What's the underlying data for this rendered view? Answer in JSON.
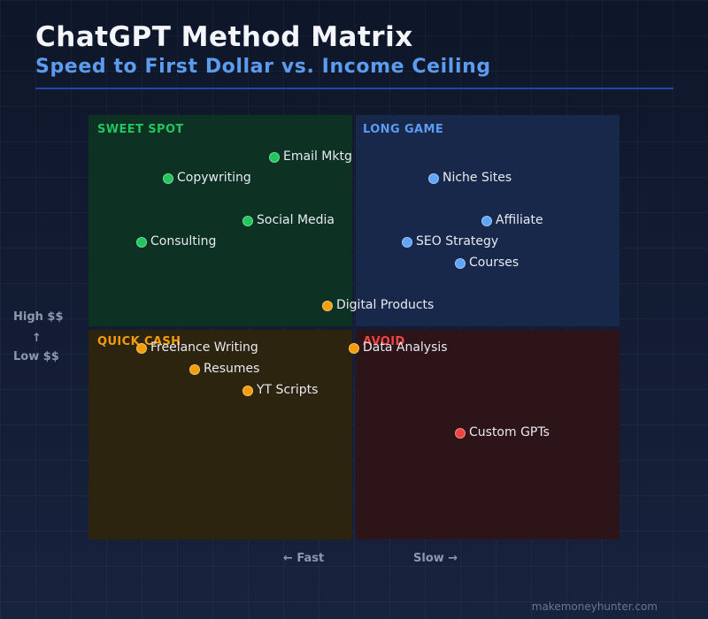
{
  "header": {
    "title": "ChatGPT Method Matrix",
    "subtitle": "Speed to First Dollar vs. Income Ceiling"
  },
  "chart_data": {
    "type": "scatter",
    "title": "ChatGPT Method Matrix",
    "subtitle": "Speed to First Dollar vs. Income Ceiling",
    "x_axis": {
      "low_label": "← Fast",
      "high_label": "Slow →",
      "range": [
        0,
        10
      ]
    },
    "y_axis": {
      "high_label": "High $$",
      "arrow": "↑",
      "low_label": "Low $$",
      "range": [
        0,
        10
      ]
    },
    "grid": true,
    "quadrants": [
      {
        "key": "sweet",
        "label": "SWEET SPOT",
        "position": "top-left",
        "fill": "#0d3123",
        "label_color": "#22c55e"
      },
      {
        "key": "long",
        "label": "LONG GAME",
        "position": "top-right",
        "fill": "#17284a",
        "label_color": "#5b9cf2"
      },
      {
        "key": "quick",
        "label": "QUICK CASH",
        "position": "bottom-left",
        "fill": "#2d2410",
        "label_color": "#f59e0b"
      },
      {
        "key": "avoid",
        "label": "AVOID",
        "position": "bottom-right",
        "fill": "#2c1418",
        "label_color": "#ef4444"
      }
    ],
    "colors": {
      "green": "#22c55e",
      "blue": "#60a5fa",
      "orange": "#f59e0b",
      "red": "#ef4444"
    },
    "points": [
      {
        "label": "Email Mktg",
        "x": 3.5,
        "y": 9.0,
        "color": "green"
      },
      {
        "label": "Copywriting",
        "x": 1.5,
        "y": 8.5,
        "color": "green"
      },
      {
        "label": "Social Media",
        "x": 3.0,
        "y": 7.5,
        "color": "green"
      },
      {
        "label": "Consulting",
        "x": 1.0,
        "y": 7.0,
        "color": "green"
      },
      {
        "label": "Niche Sites",
        "x": 6.5,
        "y": 8.5,
        "color": "blue"
      },
      {
        "label": "Affiliate",
        "x": 7.5,
        "y": 7.5,
        "color": "blue"
      },
      {
        "label": "SEO Strategy",
        "x": 6.0,
        "y": 7.0,
        "color": "blue"
      },
      {
        "label": "Courses",
        "x": 7.0,
        "y": 6.5,
        "color": "blue"
      },
      {
        "label": "Digital Products",
        "x": 4.5,
        "y": 5.5,
        "color": "orange"
      },
      {
        "label": "Freelance Writing",
        "x": 1.0,
        "y": 4.5,
        "color": "orange"
      },
      {
        "label": "Data Analysis",
        "x": 5.0,
        "y": 4.5,
        "color": "orange"
      },
      {
        "label": "Resumes",
        "x": 2.0,
        "y": 4.0,
        "color": "orange"
      },
      {
        "label": "YT Scripts",
        "x": 3.0,
        "y": 3.5,
        "color": "orange"
      },
      {
        "label": "Custom GPTs",
        "x": 7.0,
        "y": 2.5,
        "color": "red"
      }
    ]
  },
  "footer": {
    "credit": "makemoneyhunter.com"
  }
}
